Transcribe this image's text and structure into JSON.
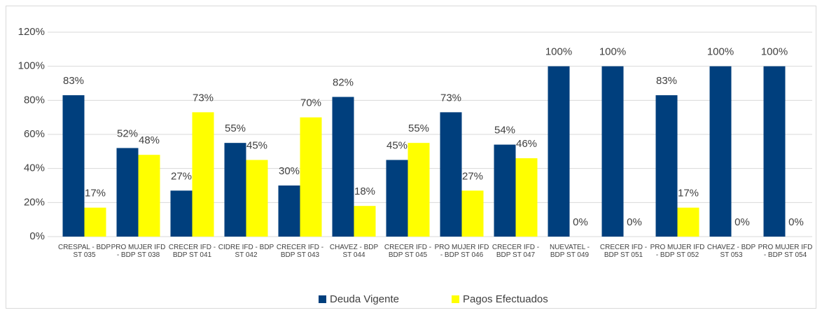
{
  "chart_data": {
    "type": "bar",
    "categories": [
      "CRESPAL - BDP ST 035",
      "PRO MUJER IFD - BDP ST 038",
      "CRECER IFD - BDP ST 041",
      "CIDRE IFD - BDP ST 042",
      "CRECER IFD - BDP ST 043",
      "CHAVEZ - BDP ST 044",
      "CRECER IFD - BDP ST 045",
      "PRO MUJER IFD - BDP ST 046",
      "CRECER IFD - BDP ST 047",
      "NUEVATEL - BDP ST 049",
      "CRECER IFD - BDP ST 051",
      "PRO MUJER IFD - BDP ST 052",
      "CHAVEZ - BDP ST 053",
      "PRO MUJER IFD - BDP ST 054"
    ],
    "series": [
      {
        "name": "Deuda Vigente",
        "color": "#003f7d",
        "values": [
          83,
          52,
          27,
          55,
          30,
          82,
          45,
          73,
          54,
          100,
          100,
          83,
          100,
          100
        ],
        "value_labels": [
          "83%",
          "52%",
          "27%",
          "55%",
          "30%",
          "82%",
          "45%",
          "73%",
          "54%",
          "100%",
          "100%",
          "83%",
          "100%",
          "100%"
        ]
      },
      {
        "name": "Pagos Efectuados",
        "color": "#ffff00",
        "values": [
          17,
          48,
          73,
          45,
          70,
          18,
          55,
          27,
          46,
          0,
          0,
          17,
          0,
          0
        ],
        "value_labels": [
          "17%",
          "48%",
          "73%",
          "45%",
          "70%",
          "18%",
          "55%",
          "27%",
          "46%",
          "0%",
          "0%",
          "17%",
          "0%",
          "0%"
        ]
      }
    ],
    "ylim": [
      0,
      120
    ],
    "yticks": [
      {
        "value": 0,
        "label": "0%"
      },
      {
        "value": 20,
        "label": "20%"
      },
      {
        "value": 40,
        "label": "40%"
      },
      {
        "value": 60,
        "label": "60%"
      },
      {
        "value": 80,
        "label": "80%"
      },
      {
        "value": 100,
        "label": "100%"
      },
      {
        "value": 120,
        "label": "120%"
      }
    ],
    "grid": true,
    "legend": "bottom"
  }
}
